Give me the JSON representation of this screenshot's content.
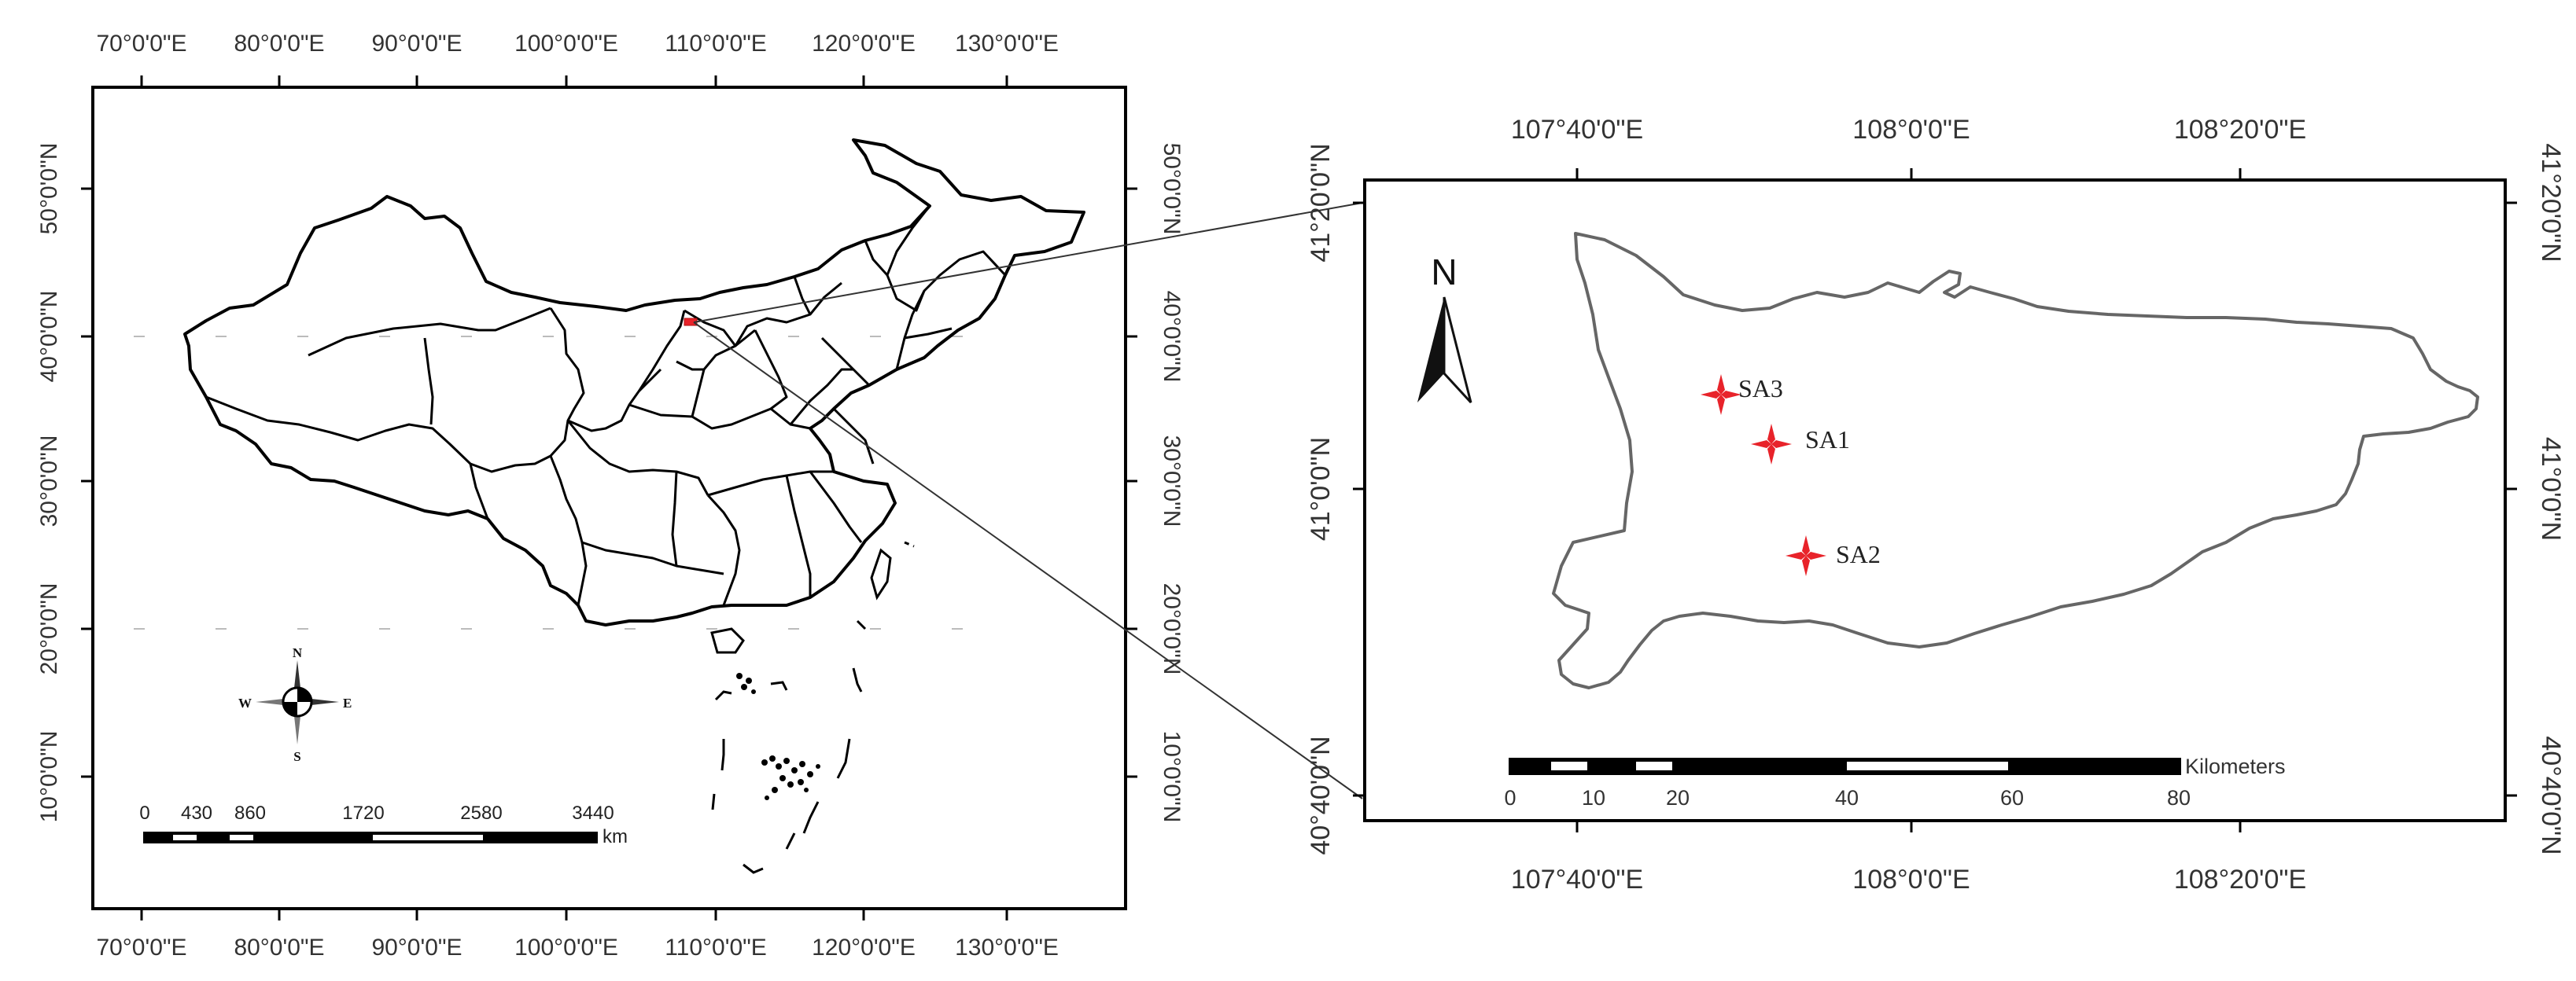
{
  "left_map": {
    "top_ticks": [
      "70°0'0\"E",
      "80°0'0\"E",
      "90°0'0\"E",
      "100°0'0\"E",
      "110°0'0\"E",
      "120°0'0\"E",
      "130°0'0\"E"
    ],
    "bottom_ticks": [
      "70°0'0\"E",
      "80°0'0\"E",
      "90°0'0\"E",
      "100°0'0\"E",
      "110°0'0\"E",
      "120°0'0\"E",
      "130°0'0\"E"
    ],
    "left_ticks": [
      "50°0'0\"N",
      "40°0'0\"N",
      "30°0'0\"N",
      "20°0'0\"N",
      "10°0'0\"N"
    ],
    "right_ticks": [
      "50°0'0\"N",
      "40°0'0\"N",
      "30°0'0\"N",
      "20°0'0\"N",
      "10°0'0\"N"
    ],
    "scale_bar": {
      "labels": [
        "0",
        "430",
        "860",
        "1720",
        "2580",
        "3440"
      ],
      "unit": "km"
    },
    "compass": {
      "n": "N",
      "s": "S",
      "e": "E",
      "w": "W"
    },
    "study_area_color": "#e8232a"
  },
  "right_map": {
    "top_ticks": [
      "107°40'0\"E",
      "108°0'0\"E",
      "108°20'0\"E"
    ],
    "bottom_ticks": [
      "107°40'0\"E",
      "108°0'0\"E",
      "108°20'0\"E"
    ],
    "left_ticks": [
      "41°20'0\"N",
      "41°0'0\"N",
      "40°40'0\"N"
    ],
    "right_ticks": [
      "41°20'0\"N",
      "41°0'0\"N",
      "40°40'0\"N"
    ],
    "north_arrow": "N",
    "scale_bar": {
      "labels": [
        "0",
        "10",
        "20",
        "40",
        "60",
        "80"
      ],
      "unit": "Kilometers"
    },
    "sites": [
      {
        "name": "SA3",
        "color": "#e8232a"
      },
      {
        "name": "SA1",
        "color": "#e8232a"
      },
      {
        "name": "SA2",
        "color": "#e8232a"
      }
    ]
  }
}
